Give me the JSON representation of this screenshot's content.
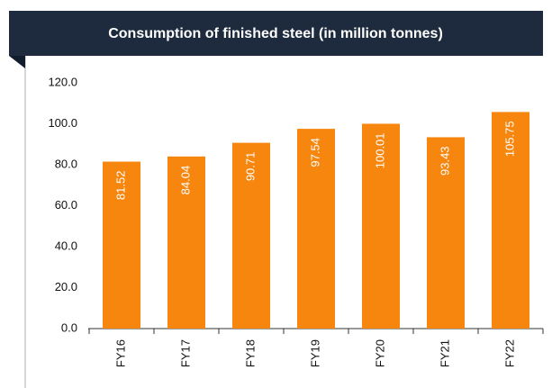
{
  "chart_data": {
    "type": "bar",
    "title": "Consumption of finished steel (in million tonnes)",
    "categories": [
      "FY16",
      "FY17",
      "FY18",
      "FY19",
      "FY20",
      "FY21",
      "FY22"
    ],
    "values": [
      81.52,
      84.04,
      90.71,
      97.54,
      100.01,
      93.43,
      105.75
    ],
    "color": "#f7860f",
    "ylim": [
      0,
      120
    ],
    "yticks": [
      {
        "value": 0,
        "label": "0.0"
      },
      {
        "value": 20,
        "label": "20.0"
      },
      {
        "value": 40,
        "label": "40.0"
      },
      {
        "value": 60,
        "label": "60.0"
      },
      {
        "value": 80,
        "label": "80.0"
      },
      {
        "value": 100,
        "label": "100.0"
      },
      {
        "value": 120,
        "label": "120.0"
      }
    ],
    "grid": false
  }
}
